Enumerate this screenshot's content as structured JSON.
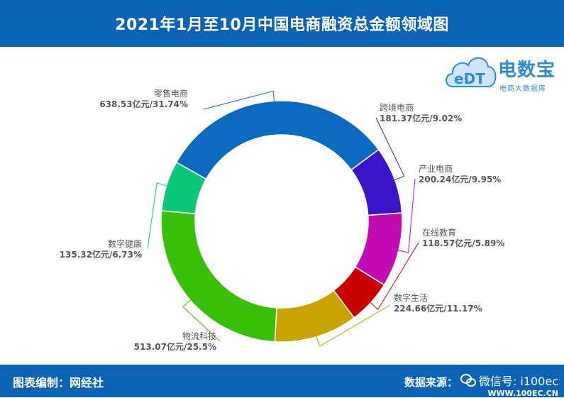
{
  "header": {
    "title": "2021年1月至10月中国电商融资总金额领域图"
  },
  "logo": {
    "brand": "电数宝",
    "tagline": "电商大数据库",
    "mark": "eDT"
  },
  "footer": {
    "editor": "图表编制：网经社",
    "source": "数据来源：",
    "wechat": "微信号: i100ec",
    "source_site": "WWW.100EC.CN"
  },
  "chart_data": {
    "type": "pie",
    "donut": true,
    "title": "2021年1月至10月中国电商融资总金额领域图",
    "slices": [
      {
        "name": "零售电商",
        "value": 638.53,
        "percent": 31.74,
        "value_label": "638.53亿元/31.74%",
        "color": "#0a6ac0"
      },
      {
        "name": "跨境电商",
        "value": 181.37,
        "percent": 9.02,
        "value_label": "181.37亿元/9.02%",
        "color": "#3a14c8"
      },
      {
        "name": "产业电商",
        "value": 200.24,
        "percent": 9.95,
        "value_label": "200.24亿元/9.95%",
        "color": "#c40ab4"
      },
      {
        "name": "在线教育",
        "value": 118.57,
        "percent": 5.89,
        "value_label": "118.57亿元/5.89%",
        "color": "#c80000"
      },
      {
        "name": "数字生活",
        "value": 224.66,
        "percent": 11.17,
        "value_label": "224.66亿元/11.17%",
        "color": "#c8a400"
      },
      {
        "name": "物流科技",
        "value": 513.07,
        "percent": 25.5,
        "value_label": "513.07亿元/25.5%",
        "color": "#38c008"
      },
      {
        "name": "数字健康",
        "value": 135.32,
        "percent": 6.73,
        "value_label": "135.32亿元/6.73%",
        "color": "#0ac878"
      }
    ],
    "legend": "none"
  }
}
